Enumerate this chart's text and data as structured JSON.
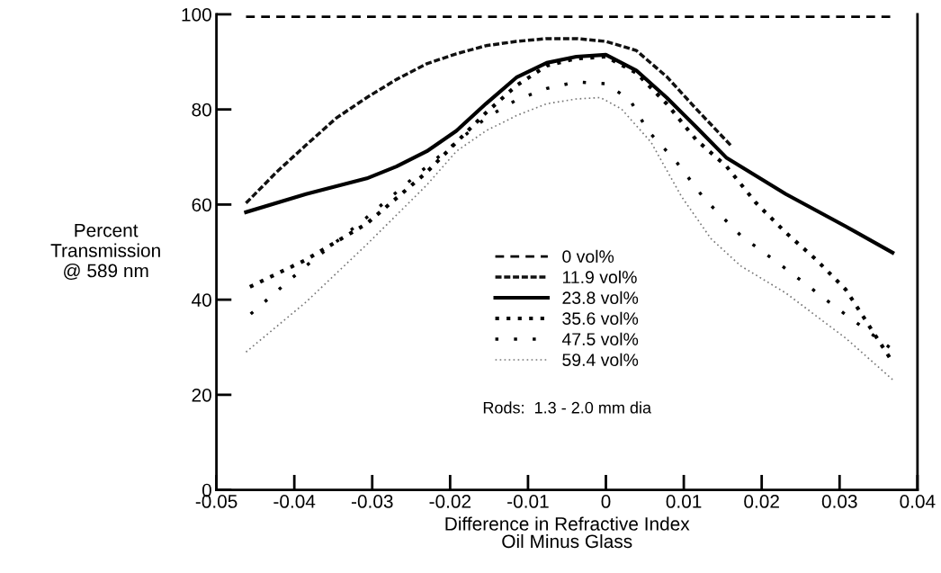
{
  "chart_data": {
    "type": "line",
    "xlabel": "Difference in Refractive Index\nOil Minus Glass",
    "ylabel": "Percent\nTransmission\n@ 589 nm",
    "xlim": [
      -0.05,
      0.04
    ],
    "xticks": [
      -0.05,
      -0.04,
      -0.03,
      -0.02,
      -0.01,
      0,
      0.01,
      0.02,
      0.03,
      0.04
    ],
    "ylim": [
      0,
      100
    ],
    "yticks": [
      0,
      20,
      40,
      60,
      80,
      100
    ],
    "grid": false,
    "legend": "bottom",
    "annotations": [
      "Rods:  1.3 - 2.0 mm dia"
    ],
    "series": [
      {
        "name": "0 vol%",
        "color": "#000000",
        "line_style": "dashed",
        "x": [
          -0.0462,
          0.0365
        ],
        "values": [
          99.5,
          99.5
        ]
      },
      {
        "name": "11.9 vol%",
        "color": "#111111",
        "line_style": "dashed",
        "x": [
          -0.0462,
          -0.0423,
          -0.0385,
          -0.0346,
          -0.0307,
          -0.0269,
          -0.023,
          -0.0192,
          -0.0154,
          -0.0115,
          -0.0076,
          -0.0038,
          0,
          0.0039,
          0.0078,
          0.0116,
          0.016
        ],
        "values": [
          60.3,
          66.8,
          72.5,
          78.2,
          82.5,
          86.3,
          89.6,
          91.7,
          93.4,
          94.3,
          94.9,
          94.9,
          94.3,
          92.4,
          86.9,
          80.1,
          72.5
        ]
      },
      {
        "name": "23.8 vol%",
        "color": "#000000",
        "line_style": "solid",
        "x": [
          -0.0462,
          -0.0385,
          -0.0307,
          -0.0269,
          -0.023,
          -0.0192,
          -0.0154,
          -0.0115,
          -0.0076,
          -0.0038,
          0,
          0.0039,
          0.0078,
          0.0116,
          0.0155,
          0.0231,
          0.0308,
          0.0368
        ],
        "values": [
          58.4,
          62.2,
          65.5,
          68,
          71.2,
          75.5,
          81.2,
          86.7,
          89.8,
          91.1,
          91.5,
          88.2,
          82.5,
          76.3,
          69.8,
          62.2,
          55.4,
          49.9
        ]
      },
      {
        "name": "35.6 vol%",
        "color": "#000000",
        "line_style": "dotted",
        "x": [
          -0.0457,
          -0.0385,
          -0.0307,
          -0.023,
          -0.0192,
          -0.0154,
          -0.0115,
          -0.0076,
          -0.0038,
          0,
          0.0039,
          0.0078,
          0.0116,
          0.0155,
          0.0193,
          0.0231,
          0.027,
          0.0308,
          0.0364
        ],
        "values": [
          42.7,
          48.4,
          56,
          66.8,
          73.1,
          79.3,
          85,
          89.2,
          90.7,
          91.1,
          87.7,
          81.2,
          73.6,
          68,
          60.3,
          54.1,
          48.4,
          42.1,
          27.9
        ]
      },
      {
        "name": "47.5 vol%",
        "color": "#000000",
        "line_style": "dotted",
        "x": [
          -0.0456,
          -0.0385,
          -0.0307,
          -0.023,
          -0.0192,
          -0.0154,
          -0.0115,
          -0.0076,
          -0.0038,
          0,
          0.0031,
          0.0054,
          0.0089,
          0.0127,
          0.0173,
          0.0231,
          0.0296,
          0.0364
        ],
        "values": [
          37,
          47.1,
          57.3,
          68,
          73.1,
          78.2,
          82,
          84.4,
          85.8,
          85.4,
          82,
          75.5,
          69.3,
          61.1,
          53.5,
          46.5,
          38.3,
          30
        ]
      },
      {
        "name": "59.4 vol%",
        "color": "#777777",
        "line_style": "dotted",
        "x": [
          -0.0462,
          -0.0385,
          -0.0307,
          -0.023,
          -0.0192,
          -0.0154,
          -0.0115,
          -0.0076,
          -0.0038,
          -0.0007,
          0.002,
          0.0058,
          0.0097,
          0.0135,
          0.0173,
          0.0231,
          0.0308,
          0.0368
        ],
        "values": [
          29,
          39.5,
          51.6,
          64.1,
          71.2,
          75.5,
          78.7,
          81.2,
          82.2,
          82.5,
          80.1,
          73.1,
          61.7,
          52.8,
          47.1,
          41.4,
          31.9,
          23.2
        ]
      }
    ]
  }
}
